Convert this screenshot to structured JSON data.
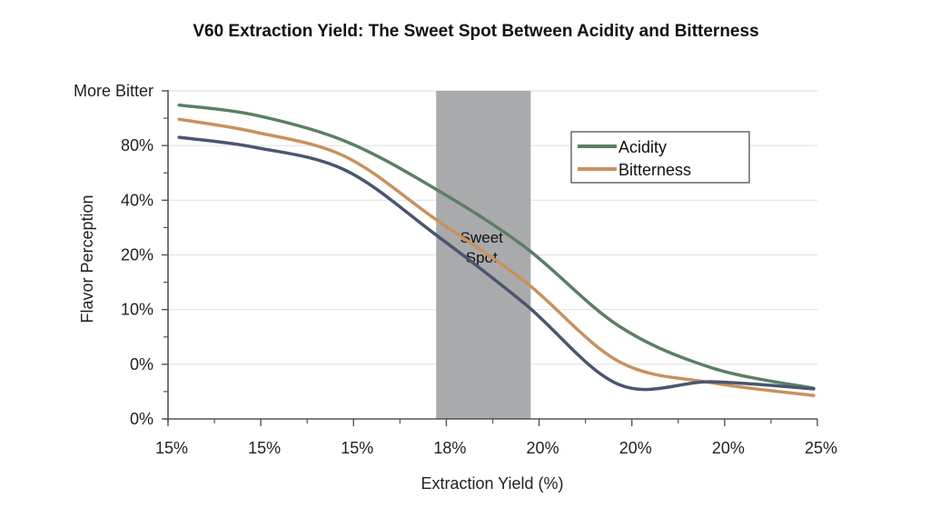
{
  "chart_data": {
    "type": "line",
    "title": "V60 Extraction Yield: The Sweet Spot Between Acidity and Bitterness",
    "xlabel": "Extraction Yield (%)",
    "ylabel": "Flavor Perception",
    "x_tick_labels": [
      "15%",
      "15%",
      "15%",
      "18%",
      "20%",
      "20%",
      "20%",
      "25%"
    ],
    "y_tick_labels": [
      "0%",
      "0%",
      "10%",
      "20%",
      "40%",
      "80%",
      "More Bitter"
    ],
    "x_units_note": "x values are positions along the tick sequence (0 = first tick, 7 = last tick)",
    "y_units_note": "y values are positions along the tick sequence (0 = bottom tick, 6 = top tick)",
    "xlim": [
      0,
      7
    ],
    "ylim": [
      0,
      6
    ],
    "grid": "horizontal",
    "legend": {
      "placement": "top-right",
      "entries": [
        "Acidity",
        "Bitterness"
      ]
    },
    "shaded_region": {
      "label_lines": [
        "Sweet",
        "Spot"
      ],
      "x_start": 2.9,
      "x_end": 3.9,
      "color": "#a9aaab"
    },
    "series": [
      {
        "name": "Acidity",
        "in_legend": true,
        "color": "#5b7f65",
        "x": [
          0.12,
          0.93,
          1.91,
          2.87,
          3.85,
          4.86,
          5.87,
          6.96
        ],
        "y": [
          5.74,
          5.56,
          5.08,
          4.22,
          3.14,
          1.7,
          0.93,
          0.56
        ]
      },
      {
        "name": "Bitterness",
        "in_legend": true,
        "color": "#c8915e",
        "x": [
          0.12,
          0.93,
          1.91,
          2.87,
          3.85,
          4.86,
          5.87,
          6.96
        ],
        "y": [
          5.48,
          5.25,
          4.8,
          3.67,
          2.51,
          1.05,
          0.66,
          0.43
        ]
      },
      {
        "name": "Unlabeled series",
        "in_legend": false,
        "color": "#4a5670",
        "x": [
          0.12,
          0.93,
          1.91,
          2.87,
          3.85,
          4.86,
          5.87,
          6.96
        ],
        "y": [
          5.15,
          4.97,
          4.55,
          3.39,
          2.1,
          0.63,
          0.68,
          0.55
        ]
      }
    ]
  }
}
